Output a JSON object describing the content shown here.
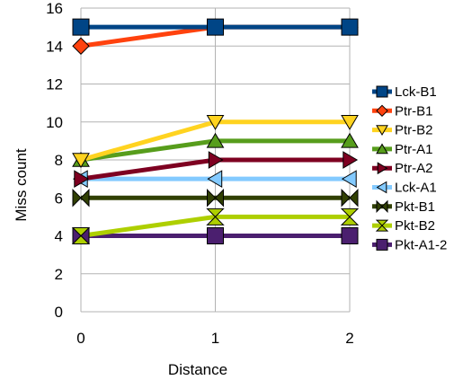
{
  "chart_data": {
    "type": "line",
    "title": "",
    "xlabel": "Distance",
    "ylabel": "Miss count",
    "x": [
      0,
      1,
      2
    ],
    "x_tick_labels": [
      "0",
      "1",
      "2"
    ],
    "ylim": [
      0,
      16
    ],
    "y_ticks": [
      0,
      2,
      4,
      6,
      8,
      10,
      12,
      14,
      16
    ],
    "grid": "horizontal and vertical gridlines",
    "legend_position": "right",
    "series": [
      {
        "name": "Lck-B1",
        "values": [
          15,
          15,
          15
        ],
        "color": "#004586",
        "marker": "square"
      },
      {
        "name": "Ptr-B1",
        "values": [
          14,
          15,
          15
        ],
        "color": "#ff420e",
        "marker": "diamond"
      },
      {
        "name": "Ptr-B2",
        "values": [
          8,
          10,
          10
        ],
        "color": "#ffd320",
        "marker": "triangle-down"
      },
      {
        "name": "Ptr-A1",
        "values": [
          8,
          9,
          9
        ],
        "color": "#579d1c",
        "marker": "triangle-up"
      },
      {
        "name": "Ptr-A2",
        "values": [
          7,
          8,
          8
        ],
        "color": "#7e0021",
        "marker": "triangle-right"
      },
      {
        "name": "Lck-A1",
        "values": [
          7,
          7,
          7
        ],
        "color": "#83caff",
        "marker": "triangle-left"
      },
      {
        "name": "Pkt-B1",
        "values": [
          6,
          6,
          6
        ],
        "color": "#314004",
        "marker": "bowtie-h"
      },
      {
        "name": "Pkt-B2",
        "values": [
          4,
          5,
          5
        ],
        "color": "#aecf00",
        "marker": "bowtie-v"
      },
      {
        "name": "Pkt-A1-2",
        "values": [
          4,
          4,
          4
        ],
        "color": "#4b1f6f",
        "marker": "square"
      }
    ]
  }
}
